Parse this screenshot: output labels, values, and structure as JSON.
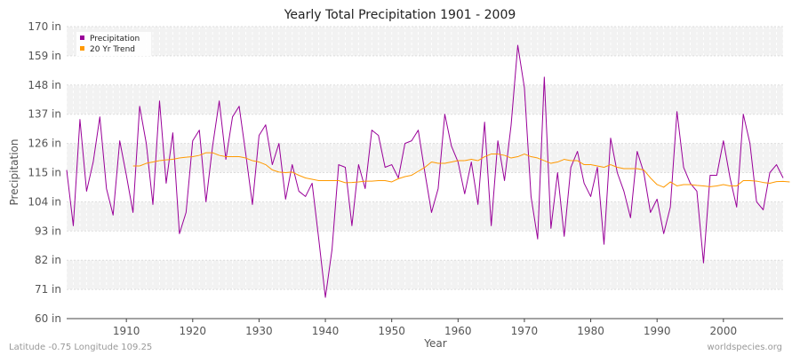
{
  "chart_data": {
    "type": "line",
    "title": "Yearly Total Precipitation 1901 - 2009",
    "xlabel": "Year",
    "ylabel": "Precipitation",
    "xlim": [
      1901,
      2009
    ],
    "ylim": [
      60,
      170
    ],
    "x_ticks": [
      1910,
      1920,
      1930,
      1940,
      1950,
      1960,
      1970,
      1980,
      1990,
      2000
    ],
    "x_tick_labels": [
      "1910",
      "1920",
      "1930",
      "1940",
      "1950",
      "1960",
      "1970",
      "1980",
      "1990",
      "2000"
    ],
    "y_ticks": [
      60,
      71,
      82,
      93,
      104,
      115,
      126,
      137,
      148,
      159,
      170
    ],
    "y_tick_labels": [
      "60 in",
      "71 in",
      "82 in",
      "93 in",
      "104 in",
      "115 in",
      "126 in",
      "137 in",
      "148 in",
      "159 in",
      "170 in"
    ],
    "grid": true,
    "legend_position": "top-left",
    "legend": [
      "Precipitation",
      "20 Yr Trend"
    ],
    "series": [
      {
        "name": "Precipitation",
        "color": "#990099",
        "x_start": 1901,
        "values": [
          116,
          95,
          135,
          108,
          119,
          136,
          109,
          99,
          127,
          114,
          100,
          140,
          126,
          103,
          142,
          111,
          130,
          92,
          100,
          127,
          131,
          104,
          125,
          142,
          120,
          136,
          140,
          122,
          103,
          129,
          133,
          118,
          126,
          105,
          118,
          108,
          106,
          111,
          90,
          68,
          86,
          118,
          117,
          95,
          118,
          109,
          131,
          129,
          117,
          118,
          113,
          126,
          127,
          131,
          115,
          100,
          109,
          137,
          125,
          119,
          107,
          119,
          103,
          134,
          95,
          127,
          112,
          133,
          163,
          147,
          106,
          90,
          151,
          94,
          115,
          91,
          117,
          123,
          111,
          106,
          117,
          88,
          128,
          115,
          108,
          98,
          123,
          115,
          100,
          105,
          92,
          102,
          138,
          117,
          111,
          108,
          81,
          114,
          114,
          127,
          113,
          102,
          137,
          126,
          104,
          101,
          115,
          118,
          113
        ]
      },
      {
        "name": "20 Yr Trend",
        "color": "#ff9900",
        "x_start": 1911,
        "values": [
          117.5,
          117.5,
          118.5,
          119,
          119.5,
          119.8,
          120,
          120.5,
          120.8,
          121,
          121.5,
          122.5,
          122.5,
          121.5,
          121,
          121,
          121,
          120.5,
          119.5,
          119,
          118,
          116,
          115.2,
          115,
          115.2,
          114,
          113,
          112.5,
          112,
          112,
          112,
          112,
          111.2,
          111.3,
          111.5,
          111.8,
          111.8,
          112,
          112,
          111.5,
          112.7,
          113.5,
          114,
          115.5,
          117,
          119,
          118.5,
          118.5,
          119,
          119.5,
          119.5,
          120,
          119.5,
          121,
          122,
          122,
          121.5,
          120.5,
          121,
          122,
          121,
          120.5,
          119.5,
          118.5,
          119,
          120,
          119.5,
          119.5,
          118,
          118,
          117.5,
          117,
          118,
          117,
          116.5,
          116.5,
          116.5,
          116,
          113,
          110.5,
          109.5,
          111.5,
          110,
          110.5,
          110.5,
          110.2,
          110,
          109.7,
          110,
          110.5,
          110,
          110,
          112,
          112,
          111.8,
          111.3,
          111,
          111.6,
          111.7,
          111.5
        ]
      }
    ]
  },
  "footer": {
    "left": "Latitude -0.75 Longitude 109.25",
    "right": "worldspecies.org"
  }
}
